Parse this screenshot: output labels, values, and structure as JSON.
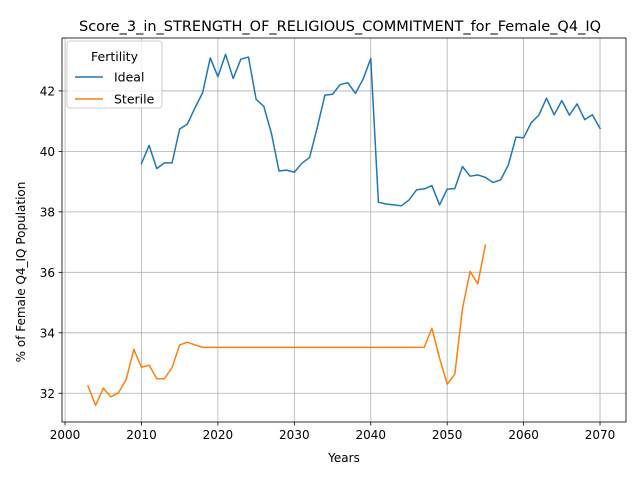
{
  "chart_data": {
    "type": "line",
    "title": "Score_3_in_STRENGTH_OF_RELIGIOUS_COMMITMENT_for_Female_Q4_IQ",
    "xlabel": "Years",
    "ylabel": "% of Female Q4_IQ Population",
    "xlim": [
      1999.6,
      2073.4
    ],
    "ylim": [
      31.05,
      43.75
    ],
    "xticks": [
      2000,
      2010,
      2020,
      2030,
      2040,
      2050,
      2060,
      2070
    ],
    "yticks": [
      32,
      34,
      36,
      38,
      40,
      42
    ],
    "grid": true,
    "legend": {
      "title": "Fertility",
      "placement": "top-left"
    },
    "series": [
      {
        "name": "Ideal",
        "color": "#1f77b4",
        "x": [
          2010,
          2011,
          2012,
          2013,
          2014,
          2015,
          2016,
          2017,
          2018,
          2019,
          2020,
          2021,
          2022,
          2023,
          2024,
          2025,
          2026,
          2027,
          2028,
          2029,
          2030,
          2031,
          2032,
          2033,
          2034,
          2035,
          2036,
          2037,
          2038,
          2039,
          2040,
          2041,
          2042,
          2043,
          2044,
          2045,
          2046,
          2047,
          2048,
          2049,
          2050,
          2051,
          2052,
          2053,
          2054,
          2055,
          2056,
          2057,
          2058,
          2059,
          2060,
          2061,
          2062,
          2063,
          2064,
          2065,
          2066,
          2067,
          2068,
          2069,
          2070
        ],
        "y": [
          39.6,
          40.2,
          39.43,
          39.62,
          39.62,
          40.74,
          40.9,
          41.44,
          41.94,
          43.09,
          42.47,
          43.21,
          42.41,
          43.05,
          43.12,
          41.72,
          41.49,
          40.6,
          39.35,
          39.38,
          39.31,
          39.61,
          39.8,
          40.79,
          41.86,
          41.89,
          42.21,
          42.27,
          41.92,
          42.39,
          43.07,
          38.32,
          38.26,
          38.23,
          38.2,
          38.39,
          38.73,
          38.76,
          38.87,
          38.23,
          38.75,
          38.77,
          39.5,
          39.18,
          39.22,
          39.14,
          38.97,
          39.06,
          39.55,
          40.47,
          40.45,
          40.95,
          41.2,
          41.76,
          41.21,
          41.68,
          41.2,
          41.57,
          41.05,
          41.21,
          40.76
        ]
      },
      {
        "name": "Sterile",
        "color": "#ff7f0e",
        "x": [
          2003,
          2004,
          2005,
          2006,
          2007,
          2008,
          2009,
          2010,
          2011,
          2012,
          2013,
          2014,
          2015,
          2016,
          2017,
          2018,
          2019,
          2020,
          2021,
          2022,
          2023,
          2024,
          2025,
          2026,
          2027,
          2028,
          2029,
          2030,
          2031,
          2032,
          2033,
          2034,
          2035,
          2036,
          2037,
          2038,
          2039,
          2040,
          2041,
          2042,
          2043,
          2044,
          2045,
          2046,
          2047,
          2048,
          2049,
          2050,
          2051,
          2052,
          2053,
          2054,
          2055
        ],
        "y": [
          32.24,
          31.6,
          32.17,
          31.88,
          32.02,
          32.46,
          33.45,
          32.86,
          32.93,
          32.48,
          32.48,
          32.85,
          33.6,
          33.69,
          33.6,
          33.52,
          33.52,
          33.52,
          33.52,
          33.52,
          33.52,
          33.52,
          33.52,
          33.52,
          33.52,
          33.52,
          33.52,
          33.52,
          33.52,
          33.52,
          33.52,
          33.52,
          33.52,
          33.52,
          33.52,
          33.52,
          33.52,
          33.52,
          33.52,
          33.52,
          33.52,
          33.52,
          33.52,
          33.52,
          33.52,
          34.15,
          33.17,
          32.3,
          32.63,
          34.8,
          36.03,
          35.62,
          36.9
        ]
      }
    ]
  }
}
